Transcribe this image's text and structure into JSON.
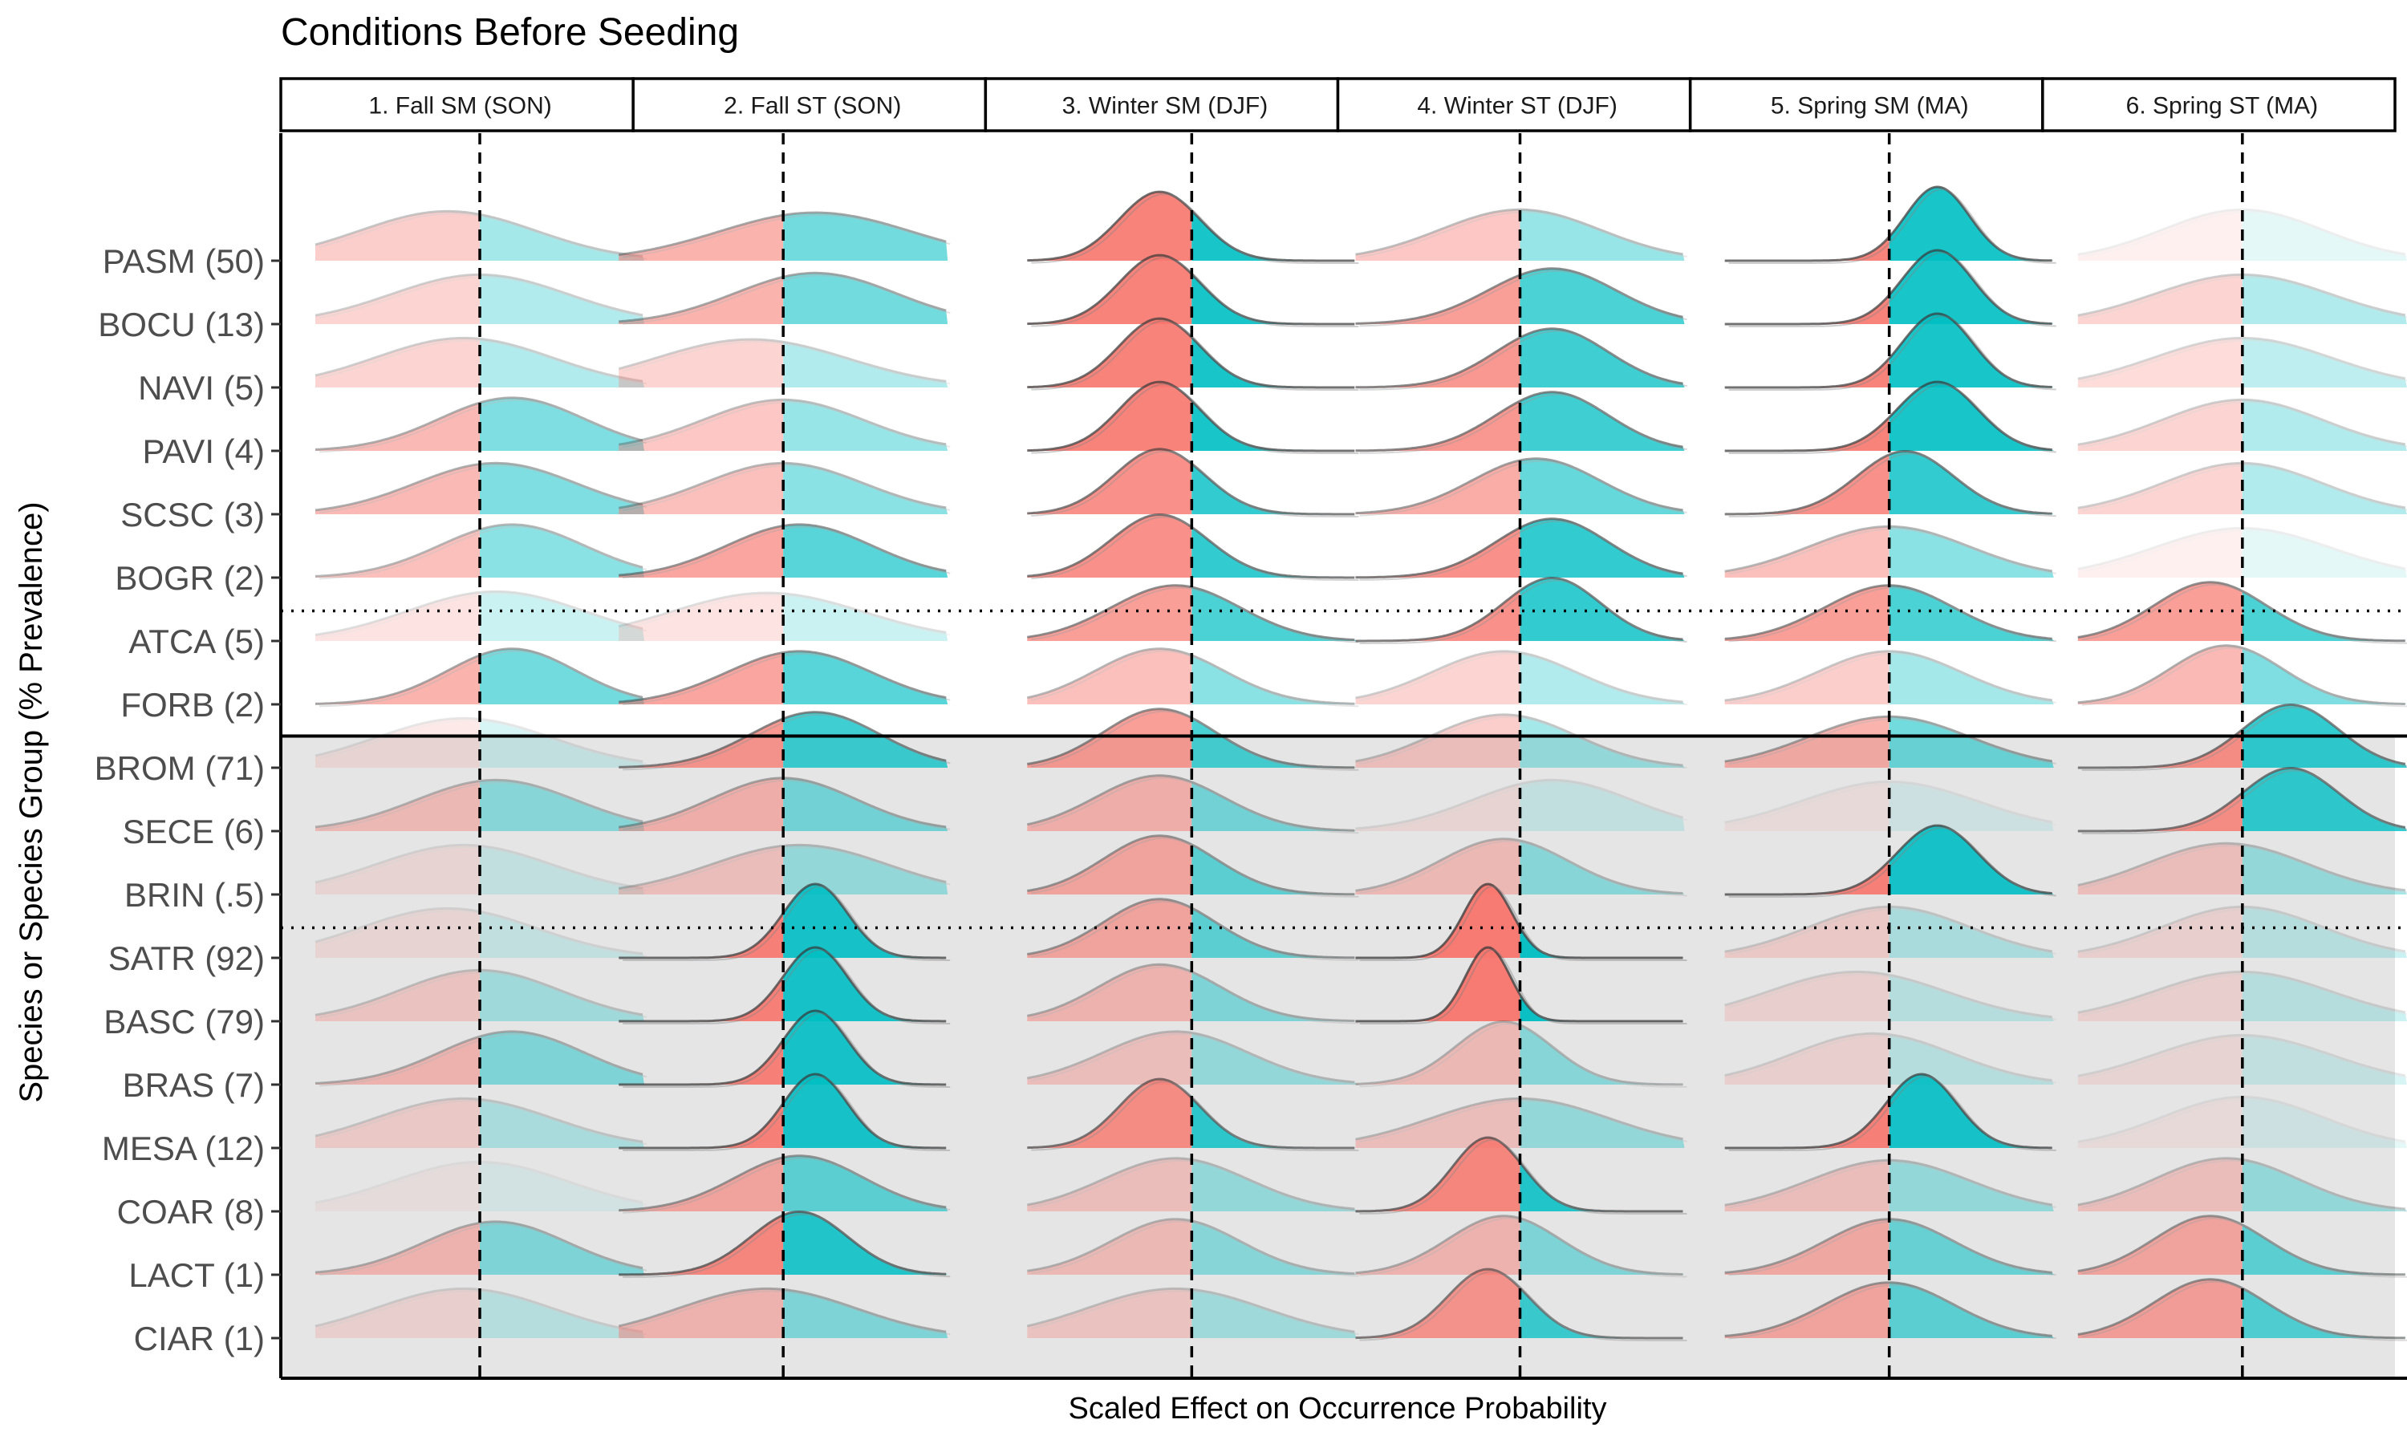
{
  "chart_data": {
    "type": "ridgeline",
    "title": "Conditions Before Seeding",
    "xlabel": "Scaled Effect on Occurrence Probability",
    "ylabel": "Species or Species Group (% Prevalence)",
    "colors": {
      "negative": "#F8766D",
      "positive": "#00BFC4",
      "background_shaded": "#e5e5e5"
    },
    "panels": [
      "1. Fall SM (SON)",
      "2. Fall ST (SON)",
      "3. Winter SM (DJF)",
      "4. Winter ST (DJF)",
      "5. Spring SM (MA)",
      "6. Spring ST (MA)"
    ],
    "species": [
      "PASM (50)",
      "BOCU (13)",
      "NAVI (5)",
      "PAVI (4)",
      "SCSC (3)",
      "BOGR (2)",
      "ATCA (5)",
      "FORB (2)",
      "BROM (71)",
      "SECE (6)",
      "BRIN (.5)",
      "SATR (92)",
      "BASC (79)",
      "BRAS (7)",
      "MESA (12)",
      "COAR (8)",
      "LACT (1)",
      "CIAR (1)"
    ],
    "shaded_from_row": 8,
    "dotted_separators_after_rows": [
      5,
      10
    ],
    "solid_separator_after_row": 7,
    "distributions": [
      [
        {
          "mean": -0.2,
          "sd": 0.55,
          "opacity": 0.35
        },
        {
          "mean": 0.2,
          "sd": 0.6,
          "opacity": 0.55
        },
        {
          "mean": -0.2,
          "sd": 0.25,
          "opacity": 0.9
        },
        {
          "mean": 0.0,
          "sd": 0.5,
          "opacity": 0.4
        },
        {
          "mean": 0.3,
          "sd": 0.2,
          "opacity": 0.9
        },
        {
          "mean": 0.0,
          "sd": 0.5,
          "opacity": 0.1
        }
      ],
      [
        {
          "mean": 0.0,
          "sd": 0.55,
          "opacity": 0.3
        },
        {
          "mean": 0.2,
          "sd": 0.5,
          "opacity": 0.55
        },
        {
          "mean": -0.2,
          "sd": 0.25,
          "opacity": 0.9
        },
        {
          "mean": 0.2,
          "sd": 0.4,
          "opacity": 0.7
        },
        {
          "mean": 0.3,
          "sd": 0.22,
          "opacity": 0.9
        },
        {
          "mean": 0.0,
          "sd": 0.55,
          "opacity": 0.3
        }
      ],
      [
        {
          "mean": -0.1,
          "sd": 0.55,
          "opacity": 0.3
        },
        {
          "mean": -0.2,
          "sd": 0.6,
          "opacity": 0.3
        },
        {
          "mean": -0.2,
          "sd": 0.25,
          "opacity": 0.9
        },
        {
          "mean": 0.2,
          "sd": 0.35,
          "opacity": 0.75
        },
        {
          "mean": 0.3,
          "sd": 0.22,
          "opacity": 0.9
        },
        {
          "mean": 0.0,
          "sd": 0.55,
          "opacity": 0.25
        }
      ],
      [
        {
          "mean": 0.2,
          "sd": 0.45,
          "opacity": 0.5
        },
        {
          "mean": 0.0,
          "sd": 0.5,
          "opacity": 0.4
        },
        {
          "mean": -0.2,
          "sd": 0.25,
          "opacity": 0.9
        },
        {
          "mean": 0.2,
          "sd": 0.35,
          "opacity": 0.75
        },
        {
          "mean": 0.3,
          "sd": 0.25,
          "opacity": 0.9
        },
        {
          "mean": 0.0,
          "sd": 0.5,
          "opacity": 0.3
        }
      ],
      [
        {
          "mean": 0.1,
          "sd": 0.5,
          "opacity": 0.5
        },
        {
          "mean": 0.0,
          "sd": 0.5,
          "opacity": 0.45
        },
        {
          "mean": -0.2,
          "sd": 0.28,
          "opacity": 0.8
        },
        {
          "mean": 0.1,
          "sd": 0.4,
          "opacity": 0.6
        },
        {
          "mean": 0.1,
          "sd": 0.3,
          "opacity": 0.8
        },
        {
          "mean": 0.0,
          "sd": 0.5,
          "opacity": 0.3
        }
      ],
      [
        {
          "mean": 0.2,
          "sd": 0.45,
          "opacity": 0.45
        },
        {
          "mean": 0.1,
          "sd": 0.45,
          "opacity": 0.65
        },
        {
          "mean": -0.2,
          "sd": 0.3,
          "opacity": 0.8
        },
        {
          "mean": 0.2,
          "sd": 0.35,
          "opacity": 0.8
        },
        {
          "mean": 0.0,
          "sd": 0.5,
          "opacity": 0.45
        },
        {
          "mean": 0.0,
          "sd": 0.55,
          "opacity": 0.1
        }
      ],
      [
        {
          "mean": 0.1,
          "sd": 0.55,
          "opacity": 0.2
        },
        {
          "mean": -0.1,
          "sd": 0.6,
          "opacity": 0.2
        },
        {
          "mean": -0.1,
          "sd": 0.4,
          "opacity": 0.7
        },
        {
          "mean": 0.2,
          "sd": 0.3,
          "opacity": 0.8
        },
        {
          "mean": 0.0,
          "sd": 0.4,
          "opacity": 0.7
        },
        {
          "mean": -0.2,
          "sd": 0.35,
          "opacity": 0.7
        }
      ],
      [
        {
          "mean": 0.2,
          "sd": 0.4,
          "opacity": 0.55
        },
        {
          "mean": 0.1,
          "sd": 0.45,
          "opacity": 0.65
        },
        {
          "mean": -0.2,
          "sd": 0.4,
          "opacity": 0.45
        },
        {
          "mean": -0.1,
          "sd": 0.45,
          "opacity": 0.3
        },
        {
          "mean": 0.0,
          "sd": 0.45,
          "opacity": 0.35
        },
        {
          "mean": -0.1,
          "sd": 0.35,
          "opacity": 0.5
        }
      ],
      [
        {
          "mean": -0.1,
          "sd": 0.55,
          "opacity": 0.15
        },
        {
          "mean": 0.2,
          "sd": 0.4,
          "opacity": 0.75
        },
        {
          "mean": -0.2,
          "sd": 0.35,
          "opacity": 0.7
        },
        {
          "mean": -0.1,
          "sd": 0.45,
          "opacity": 0.35
        },
        {
          "mean": 0.0,
          "sd": 0.5,
          "opacity": 0.55
        },
        {
          "mean": 0.3,
          "sd": 0.3,
          "opacity": 0.8
        }
      ],
      [
        {
          "mean": 0.1,
          "sd": 0.5,
          "opacity": 0.4
        },
        {
          "mean": 0.0,
          "sd": 0.45,
          "opacity": 0.5
        },
        {
          "mean": -0.2,
          "sd": 0.4,
          "opacity": 0.5
        },
        {
          "mean": 0.2,
          "sd": 0.5,
          "opacity": 0.15
        },
        {
          "mean": 0.0,
          "sd": 0.55,
          "opacity": 0.1
        },
        {
          "mean": 0.3,
          "sd": 0.3,
          "opacity": 0.8
        }
      ],
      [
        {
          "mean": -0.1,
          "sd": 0.55,
          "opacity": 0.15
        },
        {
          "mean": 0.1,
          "sd": 0.55,
          "opacity": 0.35
        },
        {
          "mean": -0.2,
          "sd": 0.35,
          "opacity": 0.6
        },
        {
          "mean": -0.1,
          "sd": 0.4,
          "opacity": 0.4
        },
        {
          "mean": 0.3,
          "sd": 0.25,
          "opacity": 0.9
        },
        {
          "mean": -0.1,
          "sd": 0.5,
          "opacity": 0.35
        }
      ],
      [
        {
          "mean": -0.2,
          "sd": 0.55,
          "opacity": 0.15
        },
        {
          "mean": 0.2,
          "sd": 0.2,
          "opacity": 0.9
        },
        {
          "mean": -0.2,
          "sd": 0.35,
          "opacity": 0.6
        },
        {
          "mean": -0.2,
          "sd": 0.15,
          "opacity": 0.95
        },
        {
          "mean": 0.0,
          "sd": 0.5,
          "opacity": 0.25
        },
        {
          "mean": 0.0,
          "sd": 0.5,
          "opacity": 0.2
        }
      ],
      [
        {
          "mean": 0.0,
          "sd": 0.5,
          "opacity": 0.3
        },
        {
          "mean": 0.2,
          "sd": 0.2,
          "opacity": 0.9
        },
        {
          "mean": -0.2,
          "sd": 0.38,
          "opacity": 0.45
        },
        {
          "mean": -0.2,
          "sd": 0.14,
          "opacity": 0.95
        },
        {
          "mean": -0.2,
          "sd": 0.55,
          "opacity": 0.2
        },
        {
          "mean": 0.0,
          "sd": 0.55,
          "opacity": 0.2
        }
      ],
      [
        {
          "mean": 0.2,
          "sd": 0.45,
          "opacity": 0.45
        },
        {
          "mean": 0.2,
          "sd": 0.2,
          "opacity": 0.9
        },
        {
          "mean": -0.1,
          "sd": 0.45,
          "opacity": 0.35
        },
        {
          "mean": -0.1,
          "sd": 0.3,
          "opacity": 0.4
        },
        {
          "mean": -0.1,
          "sd": 0.5,
          "opacity": 0.2
        },
        {
          "mean": 0.0,
          "sd": 0.55,
          "opacity": 0.15
        }
      ],
      [
        {
          "mean": -0.1,
          "sd": 0.55,
          "opacity": 0.25
        },
        {
          "mean": 0.2,
          "sd": 0.2,
          "opacity": 0.9
        },
        {
          "mean": -0.2,
          "sd": 0.25,
          "opacity": 0.8
        },
        {
          "mean": 0.0,
          "sd": 0.55,
          "opacity": 0.35
        },
        {
          "mean": 0.2,
          "sd": 0.22,
          "opacity": 0.9
        },
        {
          "mean": 0.0,
          "sd": 0.5,
          "opacity": 0.1
        }
      ],
      [
        {
          "mean": 0.0,
          "sd": 0.55,
          "opacity": 0.08
        },
        {
          "mean": 0.1,
          "sd": 0.4,
          "opacity": 0.6
        },
        {
          "mean": -0.1,
          "sd": 0.45,
          "opacity": 0.35
        },
        {
          "mean": -0.2,
          "sd": 0.22,
          "opacity": 0.85
        },
        {
          "mean": 0.0,
          "sd": 0.5,
          "opacity": 0.35
        },
        {
          "mean": -0.1,
          "sd": 0.45,
          "opacity": 0.35
        }
      ],
      [
        {
          "mean": 0.1,
          "sd": 0.45,
          "opacity": 0.45
        },
        {
          "mean": 0.1,
          "sd": 0.3,
          "opacity": 0.85
        },
        {
          "mean": -0.1,
          "sd": 0.4,
          "opacity": 0.4
        },
        {
          "mean": -0.1,
          "sd": 0.35,
          "opacity": 0.45
        },
        {
          "mean": 0.0,
          "sd": 0.4,
          "opacity": 0.55
        },
        {
          "mean": -0.2,
          "sd": 0.35,
          "opacity": 0.6
        }
      ],
      [
        {
          "mean": -0.1,
          "sd": 0.55,
          "opacity": 0.2
        },
        {
          "mean": -0.1,
          "sd": 0.55,
          "opacity": 0.45
        },
        {
          "mean": -0.1,
          "sd": 0.55,
          "opacity": 0.3
        },
        {
          "mean": -0.2,
          "sd": 0.25,
          "opacity": 0.75
        },
        {
          "mean": 0.0,
          "sd": 0.4,
          "opacity": 0.6
        },
        {
          "mean": -0.2,
          "sd": 0.35,
          "opacity": 0.65
        }
      ]
    ]
  }
}
